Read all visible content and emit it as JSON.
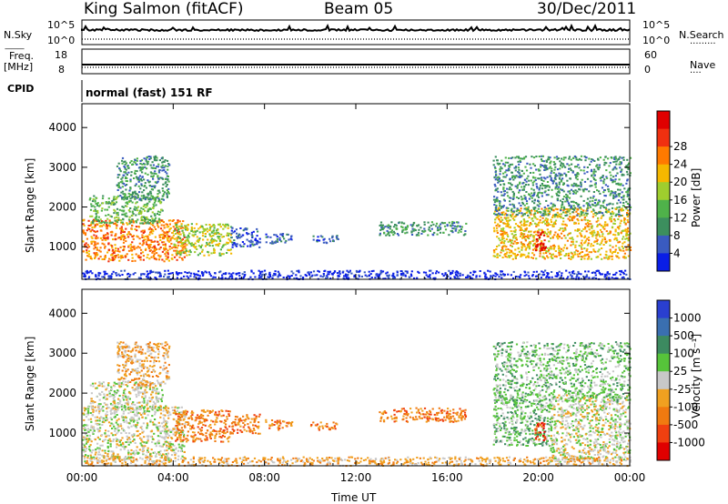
{
  "header": {
    "station": "King Salmon (fitACF)",
    "beam": "Beam 05",
    "date": "30/Dec/2011"
  },
  "status_panels": {
    "nsky_label": "N.Sky",
    "nsearch_label": "N.Search",
    "nsky_ticks": [
      "10^5",
      "10^0"
    ],
    "nsearch_ticks": [
      "10^5",
      "10^0"
    ],
    "freq_label_1": "Freq.",
    "freq_label_2": "[MHz]",
    "freq_ticks": [
      "18",
      "8"
    ],
    "nave_label": "Nave",
    "nave_ticks": [
      "60",
      "0"
    ],
    "cpid_label": "CPID",
    "cpid_value": "normal (fast) 151 RF"
  },
  "chart_data": [
    {
      "type": "heatmap",
      "quantity": "power",
      "ylabel": "Slant Range [km]",
      "ylim": [
        180,
        4600
      ],
      "yticks": [
        "1000",
        "2000",
        "3000",
        "4000"
      ],
      "colorbar_label": "Power [dB]",
      "colorbar_ticks": [
        "4",
        "8",
        "12",
        "16",
        "20",
        "24",
        "28"
      ],
      "colors": [
        "#0a1ee6",
        "#3a5bc0",
        "#3c8f5e",
        "#4fb24a",
        "#9fce2e",
        "#f5b800",
        "#ff7a00",
        "#f03010",
        "#e00000"
      ]
    },
    {
      "type": "heatmap",
      "quantity": "velocity",
      "ylabel": "Slant Range [km]",
      "ylim": [
        180,
        4600
      ],
      "yticks": [
        "1000",
        "2000",
        "3000",
        "4000"
      ],
      "colorbar_label": "Velocity [m s⁻¹]",
      "colorbar_ticks": [
        "1000",
        "500",
        "100",
        "25",
        "-25",
        "-100",
        "-500",
        "-1000"
      ],
      "colors": [
        "#2a3fd0",
        "#3a6fb0",
        "#3c8a60",
        "#56c43a",
        "#c8c8c8",
        "#f0a020",
        "#f07a10",
        "#f04010",
        "#e00000"
      ],
      "xlabel": "Time UT",
      "xticks": [
        "00:00",
        "04:00",
        "08:00",
        "12:00",
        "16:00",
        "20:00",
        "00:00"
      ]
    }
  ],
  "scatter_regions_power": [
    {
      "t0": 0.0,
      "t1": 4.5,
      "r0": 650,
      "r1": 1700,
      "level": 6
    },
    {
      "t0": 0.3,
      "t1": 3.5,
      "r0": 1600,
      "r1": 2300,
      "level": 3
    },
    {
      "t0": 1.5,
      "t1": 3.8,
      "r0": 2200,
      "r1": 3300,
      "level": 2
    },
    {
      "t0": 4.0,
      "t1": 6.5,
      "r0": 800,
      "r1": 1600,
      "level": 4
    },
    {
      "t0": 6.5,
      "t1": 7.8,
      "r0": 1000,
      "r1": 1500,
      "level": 1
    },
    {
      "t0": 8.0,
      "t1": 9.2,
      "r0": 1100,
      "r1": 1350,
      "level": 1
    },
    {
      "t0": 10.0,
      "t1": 11.2,
      "r0": 1100,
      "r1": 1300,
      "level": 1
    },
    {
      "t0": 13.0,
      "t1": 16.8,
      "r0": 1300,
      "r1": 1650,
      "level": 2
    },
    {
      "t0": 18.0,
      "t1": 24.0,
      "r0": 700,
      "r1": 2000,
      "level": 5
    },
    {
      "t0": 18.0,
      "t1": 24.0,
      "r0": 1800,
      "r1": 3300,
      "level": 2
    },
    {
      "t0": 19.8,
      "t1": 20.3,
      "r0": 900,
      "r1": 1400,
      "level": 8
    },
    {
      "t0": 0.0,
      "t1": 24.0,
      "r0": 200,
      "r1": 420,
      "level": 0
    }
  ],
  "scatter_regions_velocity": [
    {
      "t0": 0.0,
      "t1": 4.5,
      "r0": 300,
      "r1": 1700,
      "level": 4
    },
    {
      "t0": 0.3,
      "t1": 3.5,
      "r0": 1600,
      "r1": 2300,
      "level": 4
    },
    {
      "t0": 1.5,
      "t1": 3.8,
      "r0": 2200,
      "r1": 3300,
      "level": 5
    },
    {
      "t0": 4.0,
      "t1": 6.5,
      "r0": 800,
      "r1": 1600,
      "level": 6
    },
    {
      "t0": 6.5,
      "t1": 7.8,
      "r0": 1000,
      "r1": 1500,
      "level": 6
    },
    {
      "t0": 8.0,
      "t1": 9.2,
      "r0": 1100,
      "r1": 1350,
      "level": 6
    },
    {
      "t0": 10.0,
      "t1": 11.2,
      "r0": 1100,
      "r1": 1300,
      "level": 6
    },
    {
      "t0": 13.0,
      "t1": 16.8,
      "r0": 1300,
      "r1": 1650,
      "level": 6
    },
    {
      "t0": 18.0,
      "t1": 20.5,
      "r0": 700,
      "r1": 2000,
      "level": 3
    },
    {
      "t0": 20.5,
      "t1": 24.0,
      "r0": 300,
      "r1": 2000,
      "level": 4
    },
    {
      "t0": 18.0,
      "t1": 24.0,
      "r0": 1800,
      "r1": 3300,
      "level": 3
    },
    {
      "t0": 19.8,
      "t1": 20.3,
      "r0": 800,
      "r1": 1300,
      "level": 7
    },
    {
      "t0": 0.0,
      "t1": 24.0,
      "r0": 200,
      "r1": 420,
      "level": 5
    }
  ]
}
